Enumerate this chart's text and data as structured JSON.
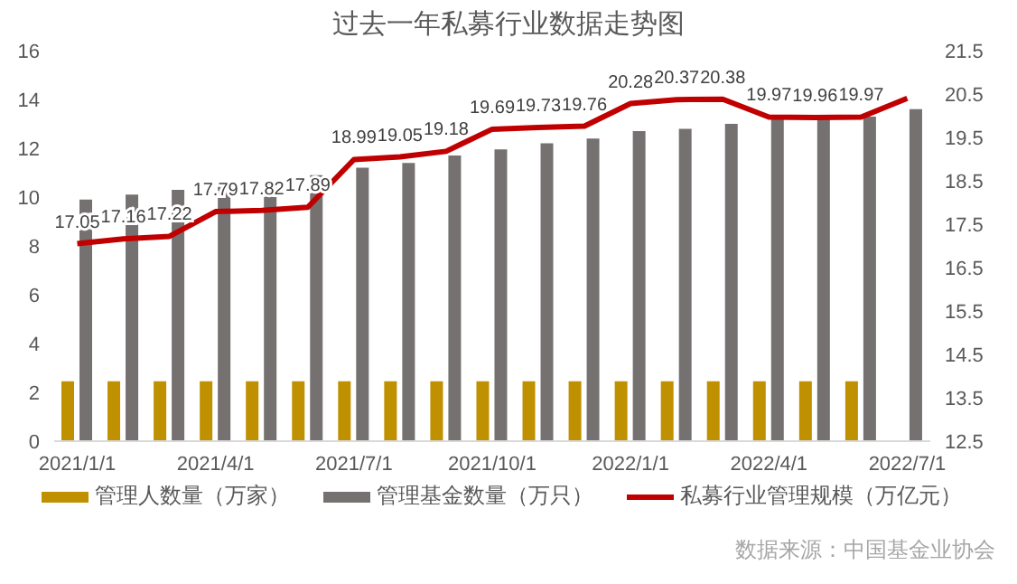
{
  "chart_data": {
    "type": "bar",
    "title": "过去一年私募行业数据走势图",
    "categories": [
      "2021/1/1",
      null,
      null,
      "2021/4/1",
      null,
      null,
      "2021/7/1",
      null,
      null,
      "2021/10/1",
      null,
      null,
      "2022/1/1",
      null,
      null,
      "2022/4/1",
      null,
      null,
      "2022/7/1"
    ],
    "series": [
      {
        "name": "管理人数量（万家）",
        "color": "#bf9000",
        "values": [
          2.45,
          2.45,
          2.45,
          2.45,
          2.45,
          2.45,
          2.45,
          2.45,
          2.45,
          2.45,
          2.45,
          2.45,
          2.45,
          2.45,
          2.45,
          2.45,
          2.45,
          2.45,
          null
        ]
      },
      {
        "name": "管理基金数量（万只）",
        "color": "#767171",
        "values": [
          9.9,
          10.1,
          10.3,
          10.5,
          10.6,
          10.9,
          11.2,
          11.4,
          11.7,
          11.95,
          12.2,
          12.4,
          12.7,
          12.8,
          13.0,
          13.2,
          13.25,
          13.3,
          13.6
        ]
      },
      {
        "name": "私募行业管理规模（万亿元）",
        "type": "line",
        "axis": "y2",
        "color": "#c00000",
        "values": [
          17.05,
          17.16,
          17.22,
          17.79,
          17.82,
          17.89,
          18.99,
          19.05,
          19.18,
          19.69,
          19.73,
          19.76,
          20.28,
          20.37,
          20.38,
          19.97,
          19.96,
          19.97,
          20.4
        ],
        "value_labels": [
          "17.05",
          "17.16",
          "17.22",
          "17.79",
          "17.82",
          "17.89",
          "18.99",
          "19.05",
          "19.18",
          "19.69",
          "19.73",
          "19.76",
          "20.28",
          "20.37",
          "20.38",
          "19.97",
          "19.96",
          "19.97",
          null
        ]
      }
    ],
    "ylim": [
      0,
      16
    ],
    "yticks": [
      0,
      2,
      4,
      6,
      8,
      10,
      12,
      14,
      16
    ],
    "y2lim": [
      12.5,
      21.5
    ],
    "y2ticks": [
      12.5,
      13.5,
      14.5,
      15.5,
      16.5,
      17.5,
      18.5,
      19.5,
      20.5,
      21.5
    ],
    "grid": false,
    "legend": "bottom",
    "marker": "none",
    "annotations": [
      "数据来源：中国基金业协会"
    ]
  }
}
